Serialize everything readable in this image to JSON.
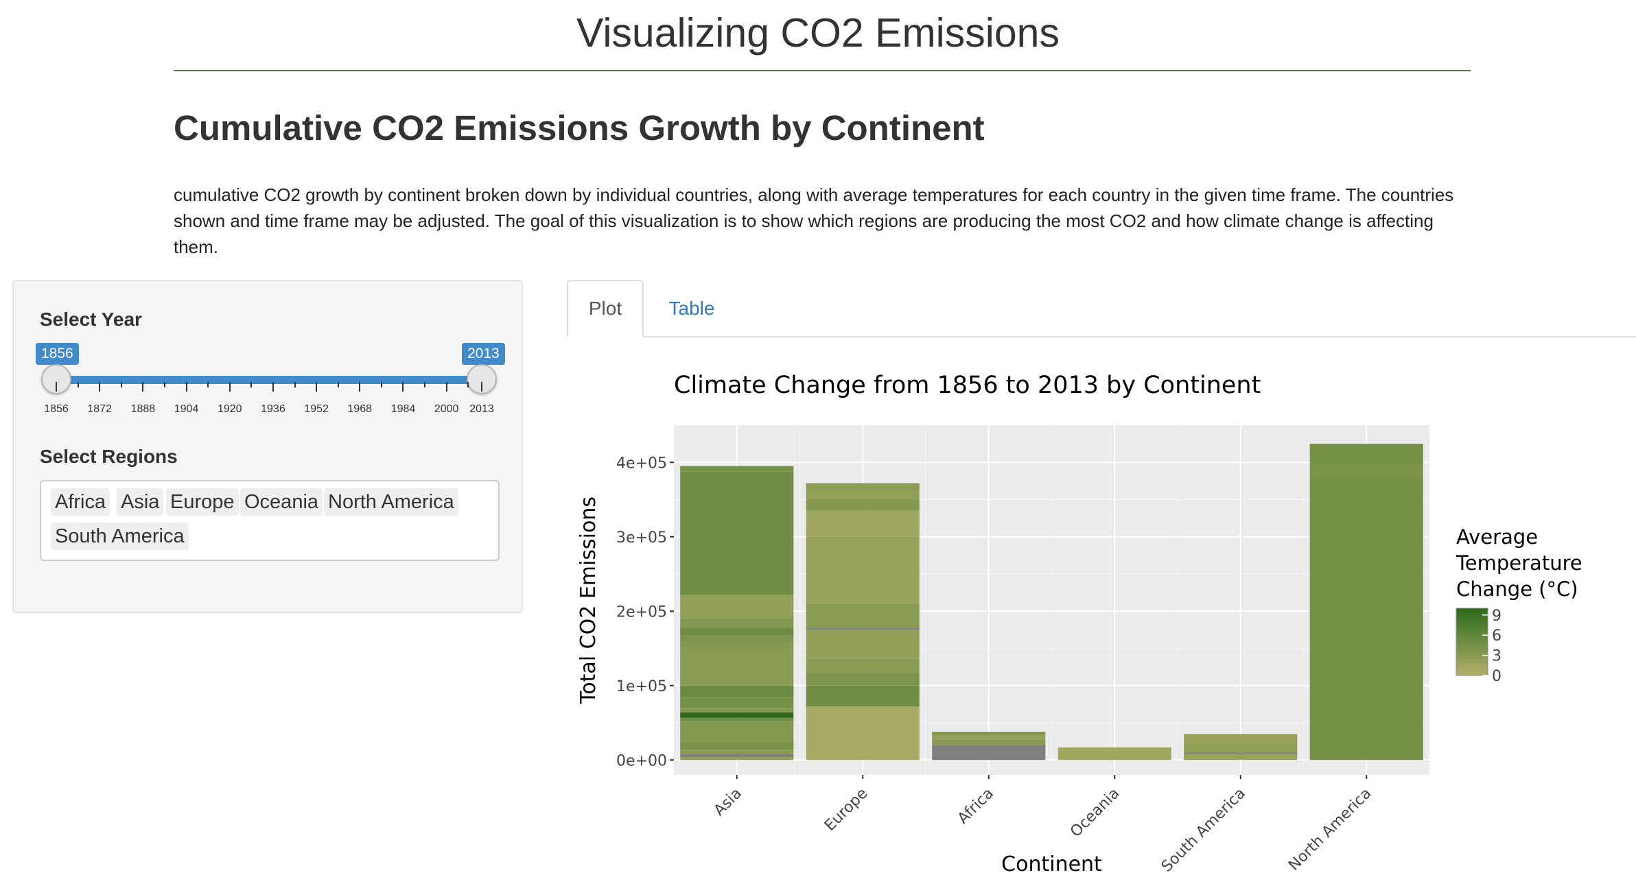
{
  "header": {
    "title": "Visualizing CO2 Emissions"
  },
  "section": {
    "title": "Cumulative CO2 Emissions Growth by Continent",
    "description": "cumulative CO2 growth by continent broken down by individual countries, along with average temperatures for each country in the given time frame. The countries shown and time frame may be adjusted. The goal of this visualization is to show which regions are producing the most CO2 and how climate change is affecting them."
  },
  "sidebar": {
    "year_label": "Select Year",
    "year_min": "1856",
    "year_max": "2013",
    "slider_ticks": [
      "1856",
      "1872",
      "1888",
      "1904",
      "1920",
      "1936",
      "1952",
      "1968",
      "1984",
      "2000",
      "2013"
    ],
    "regions_label": "Select Regions",
    "regions": [
      "Africa",
      "Asia",
      "Europe",
      "Oceania",
      "North America",
      "South America"
    ]
  },
  "tabs": {
    "plot": "Plot",
    "table": "Table"
  },
  "colors": {
    "accent": "#428bca",
    "rule": "#5b7a4f",
    "panel_bg": "#ebebeb",
    "fill_low": "#b2b06b",
    "fill_high": "#2e6a1c",
    "missing": "#7f7f7f"
  },
  "chart_data": {
    "type": "bar",
    "title": "Climate Change from  1856 to 2013 by Continent",
    "xlabel": "Continent",
    "ylabel": "Total CO2 Emissions",
    "ylim": [
      -20000,
      450000
    ],
    "yticks": [
      0,
      100000,
      200000,
      300000,
      400000
    ],
    "ytick_labels": [
      "0e+00",
      "1e+05",
      "2e+05",
      "3e+05",
      "4e+05"
    ],
    "grid": true,
    "legend": {
      "title": [
        "Average",
        "Temperature",
        "Change (°C)"
      ],
      "ticks": [
        0,
        3,
        6,
        9
      ],
      "range": [
        0,
        10
      ],
      "placement": "right"
    },
    "categories": [
      "Asia",
      "Europe",
      "Africa",
      "Oceania",
      "South America",
      "North America"
    ],
    "values": [
      395000,
      372000,
      38000,
      17000,
      35000,
      425000
    ],
    "segments": [
      [
        {
          "from": 0,
          "to": 4000,
          "temp": 2.5
        },
        {
          "from": 4000,
          "to": 8000,
          "temp": null
        },
        {
          "from": 8000,
          "to": 14000,
          "temp": 3
        },
        {
          "from": 14000,
          "to": 25000,
          "temp": 4.5
        },
        {
          "from": 25000,
          "to": 52000,
          "temp": 3.5
        },
        {
          "from": 52000,
          "to": 57000,
          "temp": 5
        },
        {
          "from": 57000,
          "to": 64000,
          "temp": 10
        },
        {
          "from": 64000,
          "to": 70000,
          "temp": 3.5
        },
        {
          "from": 70000,
          "to": 84000,
          "temp": 4.5
        },
        {
          "from": 84000,
          "to": 100000,
          "temp": 5.5
        },
        {
          "from": 100000,
          "to": 150000,
          "temp": 3
        },
        {
          "from": 150000,
          "to": 158000,
          "temp": 3.5
        },
        {
          "from": 158000,
          "to": 168000,
          "temp": 4
        },
        {
          "from": 168000,
          "to": 178000,
          "temp": 5
        },
        {
          "from": 178000,
          "to": 190000,
          "temp": 3.5
        },
        {
          "from": 190000,
          "to": 222000,
          "temp": 2.5
        },
        {
          "from": 222000,
          "to": 388000,
          "temp": 5
        },
        {
          "from": 388000,
          "to": 395000,
          "temp": 4.5
        }
      ],
      [
        {
          "from": 0,
          "to": 72000,
          "temp": 1
        },
        {
          "from": 72000,
          "to": 100000,
          "temp": 5
        },
        {
          "from": 100000,
          "to": 118000,
          "temp": 4
        },
        {
          "from": 118000,
          "to": 136000,
          "temp": 3
        },
        {
          "from": 136000,
          "to": 175000,
          "temp": 2.5
        },
        {
          "from": 175000,
          "to": 178000,
          "temp": null
        },
        {
          "from": 178000,
          "to": 210000,
          "temp": 3
        },
        {
          "from": 210000,
          "to": 300000,
          "temp": 2
        },
        {
          "from": 300000,
          "to": 335000,
          "temp": 1.5
        },
        {
          "from": 335000,
          "to": 350000,
          "temp": 3.5
        },
        {
          "from": 350000,
          "to": 362000,
          "temp": 2.5
        },
        {
          "from": 362000,
          "to": 372000,
          "temp": 3
        }
      ],
      [
        {
          "from": 0,
          "to": 20000,
          "temp": null
        },
        {
          "from": 20000,
          "to": 28000,
          "temp": 3
        },
        {
          "from": 28000,
          "to": 33000,
          "temp": 2
        },
        {
          "from": 33000,
          "to": 38000,
          "temp": 3.5
        }
      ],
      [
        {
          "from": 0,
          "to": 17000,
          "temp": 1.5
        }
      ],
      [
        {
          "from": 0,
          "to": 8000,
          "temp": 2
        },
        {
          "from": 8000,
          "to": 10000,
          "temp": null
        },
        {
          "from": 10000,
          "to": 22000,
          "temp": 2.5
        },
        {
          "from": 22000,
          "to": 35000,
          "temp": 2
        }
      ],
      [
        {
          "from": 0,
          "to": 380000,
          "temp": 4.5
        },
        {
          "from": 380000,
          "to": 397000,
          "temp": 4
        },
        {
          "from": 397000,
          "to": 425000,
          "temp": 4.5
        }
      ]
    ]
  }
}
